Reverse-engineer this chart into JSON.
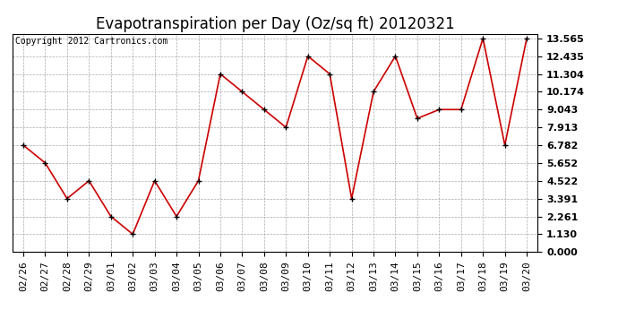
{
  "title": "Evapotranspiration per Day (Oz/sq ft) 20120321",
  "copyright": "Copyright 2012 Cartronics.com",
  "x_labels": [
    "02/26",
    "02/27",
    "02/28",
    "02/29",
    "03/01",
    "03/02",
    "03/03",
    "03/04",
    "03/05",
    "03/06",
    "03/07",
    "03/08",
    "03/09",
    "03/10",
    "03/11",
    "03/12",
    "03/13",
    "03/14",
    "03/15",
    "03/16",
    "03/17",
    "03/18",
    "03/19",
    "03/20"
  ],
  "y_values": [
    6.782,
    5.652,
    3.391,
    4.522,
    2.261,
    1.13,
    4.522,
    2.261,
    4.522,
    11.304,
    10.174,
    9.043,
    7.913,
    12.435,
    11.304,
    3.391,
    10.174,
    12.435,
    8.478,
    9.043,
    9.043,
    13.565,
    6.782,
    13.565
  ],
  "line_color": "#cc0000",
  "marker": "x",
  "marker_color": "#000000",
  "marker_size": 4,
  "background_color": "#ffffff",
  "grid_color": "#aaaaaa",
  "yticks": [
    0.0,
    1.13,
    2.261,
    3.391,
    4.522,
    5.652,
    6.782,
    7.913,
    9.043,
    10.174,
    11.304,
    12.435,
    13.565
  ],
  "ylim_min": 0,
  "ylim_max": 13.565,
  "title_fontsize": 12,
  "tick_fontsize": 8,
  "copyright_fontsize": 7
}
